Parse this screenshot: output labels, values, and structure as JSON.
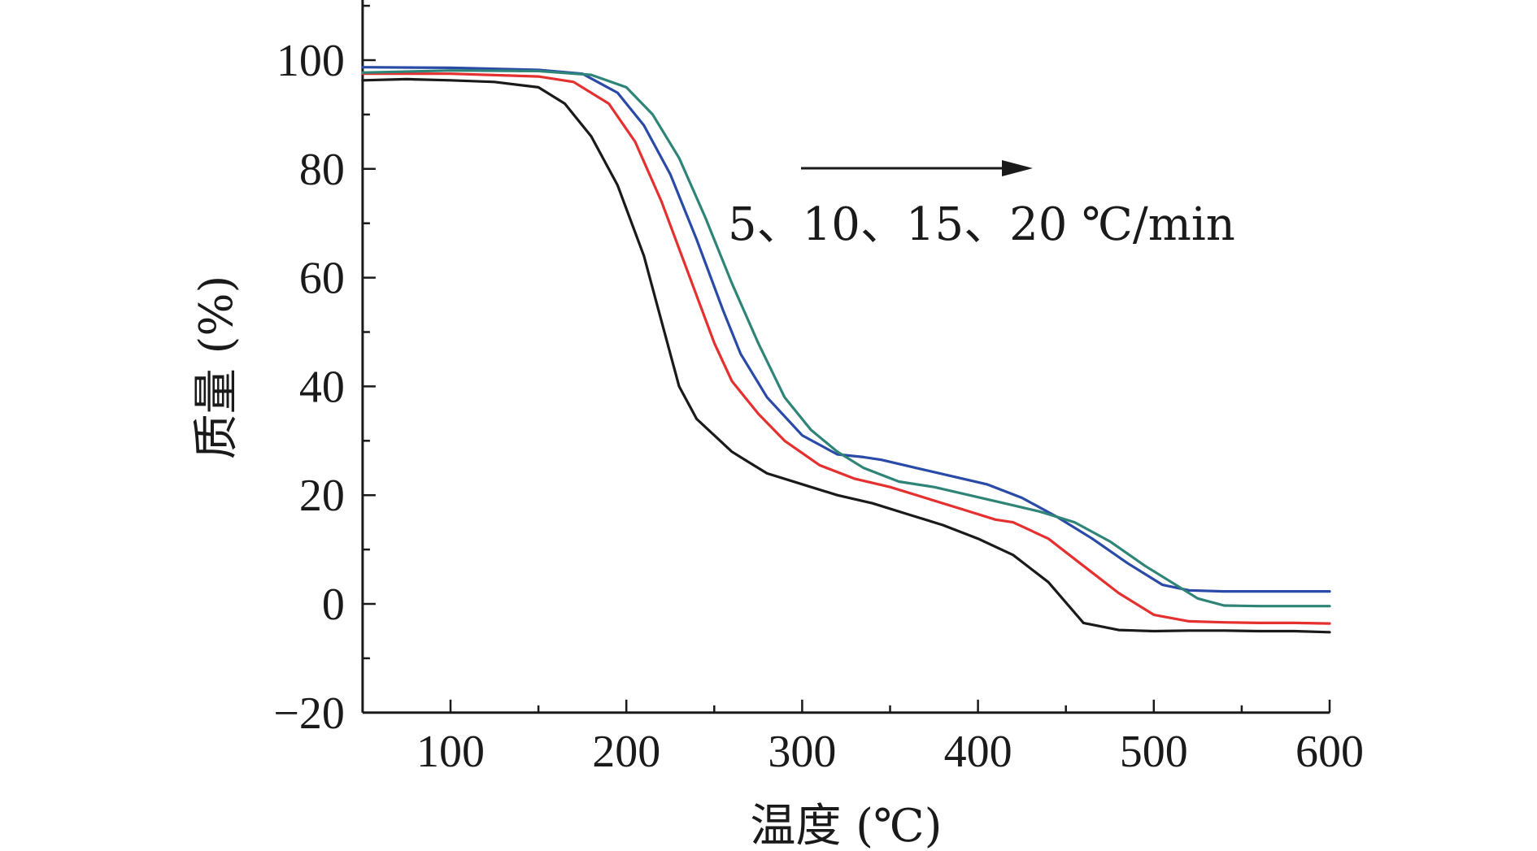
{
  "chart_data": {
    "type": "line",
    "xlabel": "温度 (℃)",
    "ylabel": "质量 (%)",
    "xlim": [
      50,
      600
    ],
    "ylim": [
      -20,
      110
    ],
    "xticks": [
      100,
      200,
      300,
      400,
      500,
      600
    ],
    "yticks": [
      -20,
      0,
      20,
      40,
      60,
      80,
      100
    ],
    "annotation": "5、10、15、20 ℃/min",
    "series": [
      {
        "color": "#1a1a1a",
        "x": [
          50,
          75,
          100,
          125,
          150,
          165,
          180,
          195,
          210,
          220,
          230,
          240,
          250,
          260,
          270,
          280,
          300,
          320,
          340,
          360,
          380,
          400,
          420,
          440,
          460,
          480,
          500,
          520,
          540,
          560,
          580,
          600
        ],
        "y": [
          96.3,
          96.5,
          96.3,
          96.0,
          95.0,
          92.0,
          86.0,
          77.0,
          64.0,
          52.0,
          40.0,
          34.0,
          31.0,
          28.0,
          26.0,
          24.0,
          22.0,
          20.0,
          18.5,
          16.5,
          14.5,
          12.0,
          9.0,
          4.0,
          -3.5,
          -4.8,
          -5.0,
          -4.9,
          -4.9,
          -5.0,
          -5.0,
          -5.2
        ]
      },
      {
        "color": "#e53030",
        "x": [
          50,
          100,
          150,
          170,
          190,
          205,
          220,
          235,
          250,
          260,
          275,
          290,
          310,
          330,
          350,
          370,
          390,
          410,
          420,
          440,
          460,
          480,
          500,
          520,
          540,
          560,
          580,
          600
        ],
        "y": [
          97.5,
          97.5,
          97.0,
          96.0,
          92.0,
          85.0,
          74.0,
          61.0,
          48.0,
          41.0,
          35.0,
          30.0,
          25.5,
          23.0,
          21.5,
          19.5,
          17.5,
          15.5,
          15.0,
          12.0,
          7.0,
          2.0,
          -2.0,
          -3.2,
          -3.4,
          -3.5,
          -3.5,
          -3.6
        ]
      },
      {
        "color": "#2a4aa8",
        "x": [
          50,
          100,
          150,
          175,
          195,
          210,
          225,
          240,
          255,
          265,
          280,
          300,
          320,
          335,
          345,
          365,
          385,
          405,
          425,
          445,
          465,
          485,
          505,
          520,
          540,
          560,
          580,
          600
        ],
        "y": [
          98.7,
          98.6,
          98.2,
          97.5,
          94.0,
          88.0,
          79.0,
          67.0,
          54.0,
          46.0,
          38.0,
          31.0,
          27.5,
          27.0,
          26.5,
          25.0,
          23.5,
          22.0,
          19.5,
          16.0,
          12.0,
          7.5,
          3.5,
          2.5,
          2.3,
          2.3,
          2.3,
          2.3
        ]
      },
      {
        "color": "#2e8577",
        "x": [
          50,
          100,
          150,
          180,
          200,
          215,
          230,
          245,
          260,
          275,
          290,
          305,
          320,
          335,
          355,
          375,
          395,
          415,
          435,
          455,
          475,
          495,
          510,
          525,
          540,
          560,
          580,
          600
        ],
        "y": [
          97.7,
          98.1,
          98.0,
          97.3,
          95.0,
          90.0,
          82.0,
          71.0,
          59.0,
          48.0,
          38.0,
          32.0,
          28.0,
          25.0,
          22.5,
          21.5,
          20.0,
          18.5,
          17.0,
          15.0,
          11.5,
          7.0,
          4.0,
          1.0,
          -0.3,
          -0.4,
          -0.4,
          -0.4
        ]
      }
    ],
    "grid": false,
    "legend": "none"
  }
}
